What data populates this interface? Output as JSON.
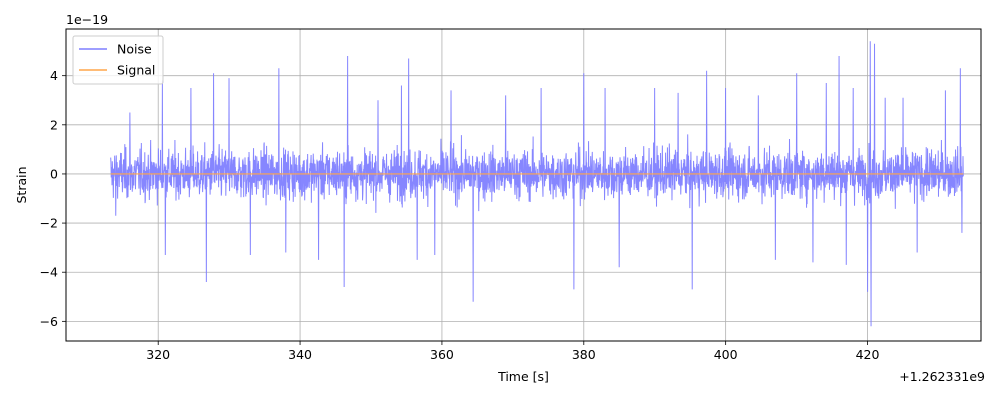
{
  "chart_data": {
    "type": "line",
    "xlabel": "Time [s]",
    "ylabel": "Strain",
    "x_offset_label": "+1.262331e9",
    "y_scale_label": "1e−19",
    "xlim": [
      307,
      436
    ],
    "ylim": [
      -6.8,
      5.9
    ],
    "x_ticks": [
      320,
      340,
      360,
      380,
      400,
      420
    ],
    "x_tick_labels": [
      "320",
      "340",
      "360",
      "380",
      "400",
      "420"
    ],
    "y_ticks": [
      -6,
      -4,
      -2,
      0,
      2,
      4
    ],
    "y_tick_labels": [
      "−6",
      "−4",
      "−2",
      "0",
      "2",
      "4"
    ],
    "grid": true,
    "legend_position": "top-left",
    "series": [
      {
        "name": "Noise",
        "color": "#7f7fff",
        "style": "dense noise band",
        "x_range": [
          313.3,
          433.5
        ],
        "typical_range": [
          -2.5,
          2.5
        ],
        "spikes": [
          {
            "x": 314.0,
            "y": 2.0
          },
          {
            "x": 314.0,
            "y": -1.7
          },
          {
            "x": 316.0,
            "y": 2.5
          },
          {
            "x": 320.6,
            "y": 3.8
          },
          {
            "x": 321.0,
            "y": -3.3
          },
          {
            "x": 324.6,
            "y": 3.5
          },
          {
            "x": 326.8,
            "y": -4.4
          },
          {
            "x": 327.8,
            "y": 4.1
          },
          {
            "x": 330.0,
            "y": 3.9
          },
          {
            "x": 333.0,
            "y": -3.3
          },
          {
            "x": 337.0,
            "y": 4.3
          },
          {
            "x": 338.0,
            "y": -3.2
          },
          {
            "x": 342.6,
            "y": -3.5
          },
          {
            "x": 346.7,
            "y": 4.8
          },
          {
            "x": 346.2,
            "y": -4.6
          },
          {
            "x": 351.0,
            "y": 3.0
          },
          {
            "x": 354.3,
            "y": 3.6
          },
          {
            "x": 355.3,
            "y": 4.7
          },
          {
            "x": 356.5,
            "y": -3.5
          },
          {
            "x": 359.0,
            "y": -3.3
          },
          {
            "x": 361.3,
            "y": 3.4
          },
          {
            "x": 364.4,
            "y": -5.2
          },
          {
            "x": 369.0,
            "y": 3.2
          },
          {
            "x": 374.0,
            "y": 3.5
          },
          {
            "x": 378.6,
            "y": -4.7
          },
          {
            "x": 380.0,
            "y": 4.1
          },
          {
            "x": 383.0,
            "y": 3.5
          },
          {
            "x": 385.0,
            "y": -3.8
          },
          {
            "x": 390.0,
            "y": 3.5
          },
          {
            "x": 393.3,
            "y": 3.3
          },
          {
            "x": 395.3,
            "y": -4.7
          },
          {
            "x": 397.3,
            "y": 4.2
          },
          {
            "x": 400.0,
            "y": 3.5
          },
          {
            "x": 404.6,
            "y": 3.2
          },
          {
            "x": 407.0,
            "y": -3.5
          },
          {
            "x": 410.0,
            "y": 4.1
          },
          {
            "x": 412.3,
            "y": -3.6
          },
          {
            "x": 414.2,
            "y": 3.7
          },
          {
            "x": 416.0,
            "y": 4.8
          },
          {
            "x": 417.0,
            "y": -3.7
          },
          {
            "x": 418.0,
            "y": 3.5
          },
          {
            "x": 420.0,
            "y": -4.8
          },
          {
            "x": 420.4,
            "y": 5.4
          },
          {
            "x": 420.5,
            "y": -6.2
          },
          {
            "x": 421.0,
            "y": 5.3
          },
          {
            "x": 422.5,
            "y": 3.1
          },
          {
            "x": 425.0,
            "y": 3.1
          },
          {
            "x": 427.0,
            "y": -3.2
          },
          {
            "x": 431.0,
            "y": 3.4
          },
          {
            "x": 433.1,
            "y": 4.3
          },
          {
            "x": 433.3,
            "y": -2.4
          }
        ]
      },
      {
        "name": "Signal",
        "color": "#ffa54a",
        "style": "line",
        "x": [
          313.3,
          433.5
        ],
        "y": [
          0,
          0
        ]
      }
    ]
  }
}
